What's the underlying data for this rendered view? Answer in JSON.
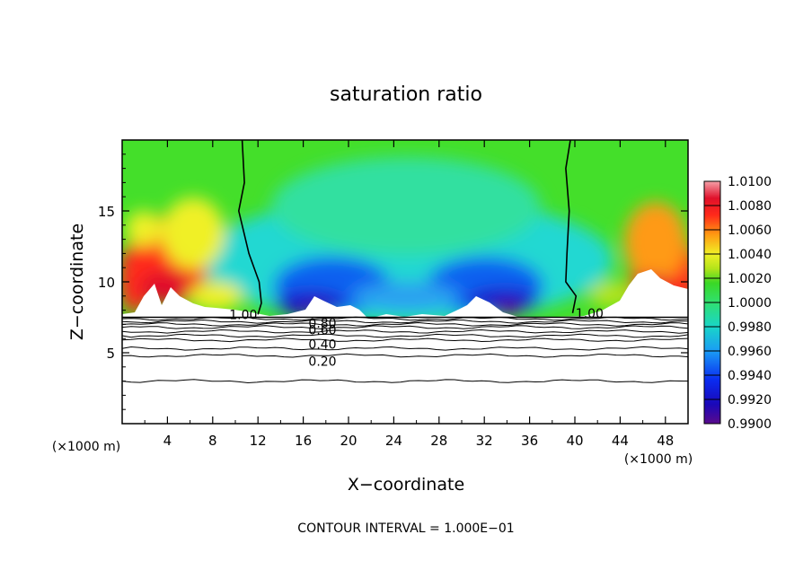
{
  "chart_data": {
    "type": "heatmap",
    "title": "saturation ratio",
    "xlabel": "X−coordinate",
    "ylabel": "Z−coordinate",
    "x_unit_left": "(×1000 m)",
    "x_unit_right": "(×1000 m)",
    "footer": "CONTOUR INTERVAL = 1.000E−01",
    "xlim": [
      0,
      50
    ],
    "ylim": [
      0,
      20
    ],
    "x_ticks": [
      4,
      8,
      12,
      16,
      20,
      24,
      28,
      32,
      36,
      40,
      44,
      48
    ],
    "y_ticks": [
      5,
      10,
      15
    ],
    "colorbar": {
      "ticks": [
        "1.0100",
        "1.0080",
        "1.0060",
        "1.0040",
        "1.0020",
        "1.0000",
        "0.9980",
        "0.9960",
        "0.9940",
        "0.9920",
        "0.9900"
      ],
      "range": [
        0.99,
        1.01
      ]
    },
    "contour_labels": [
      {
        "text": "1.00",
        "x": 10.7,
        "z": 7.7
      },
      {
        "text": "1.00",
        "x": 41.3,
        "z": 7.8
      },
      {
        "text": "0.80",
        "x": 17.7,
        "z": 7.1
      },
      {
        "text": "0.60",
        "x": 17.7,
        "z": 6.6
      },
      {
        "text": "0.40",
        "x": 17.7,
        "z": 5.6
      },
      {
        "text": "0.20",
        "x": 17.7,
        "z": 4.4
      }
    ],
    "contour_lines_z": [
      7.4,
      7.2,
      7.0,
      6.8,
      6.5,
      6.2,
      5.9,
      5.3,
      4.8,
      3.0
    ],
    "field_boundary_z": 7.5,
    "saturation_1_contour_left": [
      [
        10.6,
        20
      ],
      [
        10.8,
        17
      ],
      [
        10.3,
        15
      ],
      [
        11.2,
        12
      ],
      [
        12.1,
        10
      ],
      [
        12.3,
        8.5
      ],
      [
        12.0,
        7.7
      ]
    ],
    "saturation_1_contour_right": [
      [
        39.6,
        20
      ],
      [
        39.2,
        18
      ],
      [
        39.5,
        15
      ],
      [
        39.3,
        12
      ],
      [
        39.2,
        10
      ],
      [
        40.1,
        9
      ],
      [
        39.8,
        7.8
      ]
    ]
  }
}
